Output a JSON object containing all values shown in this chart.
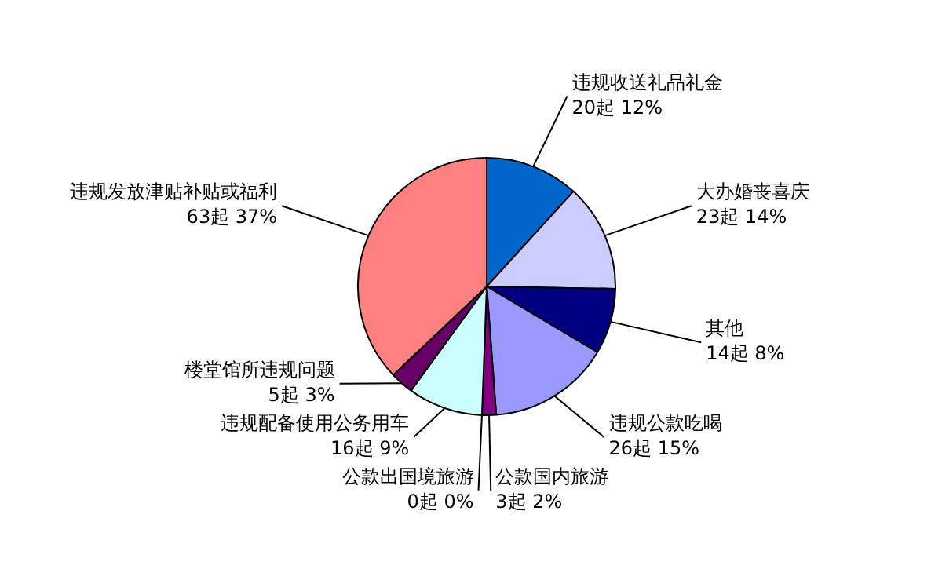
{
  "chart_data": {
    "type": "pie",
    "categories": [
      "违规收送礼品礼金",
      "大办婚丧喜庆",
      "其他",
      "违规公款吃喝",
      "公款国内旅游",
      "公款出国境旅游",
      "违规配备使用公务用车",
      "楼堂馆所违规问题",
      "违规发放津贴补贴或福利"
    ],
    "values": [
      20,
      23,
      14,
      26,
      3,
      0,
      16,
      5,
      63
    ],
    "value_labels": [
      "20起 12%",
      "23起 14%",
      "14起 8%",
      "26起 15%",
      "3起 2%",
      "0起 0%",
      "16起 9%",
      "5起 3%",
      "63起 37%"
    ],
    "colors": [
      "#0066cc",
      "#ccccff",
      "#000080",
      "#9999ff",
      "#800080",
      "#993366",
      "#ccffff",
      "#660066",
      "#ff8080"
    ],
    "legend": false
  }
}
